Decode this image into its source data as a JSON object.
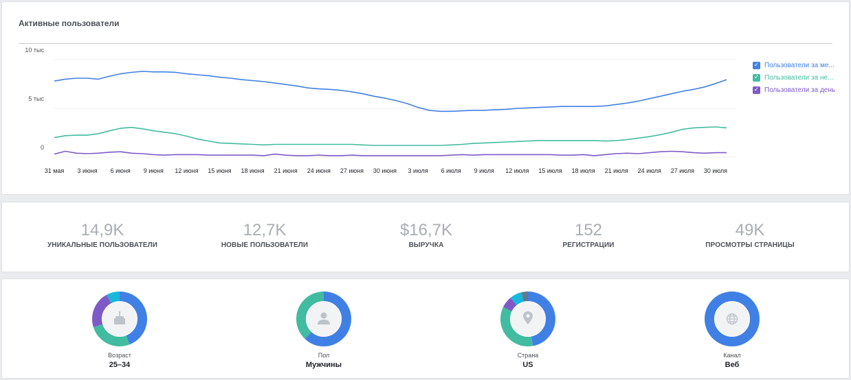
{
  "colors": {
    "monthly": "#4080e4",
    "weekly": "#42bca0",
    "daily": "#7e5ac8",
    "extra1": "#17b8dc",
    "extra2": "#5d7b8c",
    "grid": "#eceef1"
  },
  "chart_card": {
    "title": "Активные пользователи",
    "legend": [
      {
        "label": "Пользователи за ме...",
        "color": "#4080e4",
        "checked": true
      },
      {
        "label": "Пользователи за не...",
        "color": "#42bca0",
        "checked": true
      },
      {
        "label": "Пользователи за день",
        "color": "#7e5ac8",
        "checked": true
      }
    ]
  },
  "chart_data": {
    "type": "line",
    "title": "Активные пользователи",
    "xlabel": "",
    "ylabel": "",
    "ylim": [
      0,
      10000
    ],
    "yticks": [
      {
        "value": 0,
        "label": "0"
      },
      {
        "value": 5000,
        "label": "5 тыс"
      },
      {
        "value": 10000,
        "label": "10 тыс"
      }
    ],
    "x_tick_labels": [
      "31 мая",
      "3 июня",
      "6 июня",
      "9 июня",
      "12 июня",
      "15 июня",
      "18 июня",
      "21 июня",
      "24 июня",
      "27 июня",
      "30 июня",
      "3 июля",
      "6 июля",
      "9 июля",
      "12 июля",
      "15 июля",
      "18 июля",
      "21 июля",
      "24 июля",
      "27 июля",
      "30 июля"
    ],
    "x_tick_days": [
      0,
      3,
      6,
      9,
      12,
      15,
      18,
      21,
      24,
      27,
      30,
      33,
      36,
      39,
      42,
      45,
      48,
      51,
      54,
      57,
      60
    ],
    "x_range_days": [
      0,
      61
    ],
    "grid": true,
    "legend_position": "right",
    "series": [
      {
        "name": "Пользователи за месяц",
        "color": "#4080e4",
        "points": [
          [
            0,
            7800
          ],
          [
            1,
            8000
          ],
          [
            2,
            8100
          ],
          [
            3,
            8100
          ],
          [
            4,
            8000
          ],
          [
            5,
            8300
          ],
          [
            6,
            8550
          ],
          [
            7,
            8700
          ],
          [
            8,
            8800
          ],
          [
            9,
            8750
          ],
          [
            10,
            8750
          ],
          [
            11,
            8700
          ],
          [
            12,
            8550
          ],
          [
            13,
            8450
          ],
          [
            14,
            8350
          ],
          [
            15,
            8200
          ],
          [
            16,
            8100
          ],
          [
            17,
            7950
          ],
          [
            18,
            7850
          ],
          [
            19,
            7750
          ],
          [
            20,
            7600
          ],
          [
            21,
            7450
          ],
          [
            22,
            7300
          ],
          [
            23,
            7100
          ],
          [
            24,
            7000
          ],
          [
            25,
            6950
          ],
          [
            26,
            6850
          ],
          [
            27,
            6700
          ],
          [
            28,
            6500
          ],
          [
            29,
            6250
          ],
          [
            30,
            6050
          ],
          [
            31,
            5800
          ],
          [
            32,
            5500
          ],
          [
            33,
            5100
          ],
          [
            34,
            4800
          ],
          [
            35,
            4700
          ],
          [
            36,
            4700
          ],
          [
            37,
            4750
          ],
          [
            38,
            4800
          ],
          [
            39,
            4800
          ],
          [
            40,
            4850
          ],
          [
            41,
            4900
          ],
          [
            42,
            5000
          ],
          [
            43,
            5050
          ],
          [
            44,
            5100
          ],
          [
            45,
            5150
          ],
          [
            46,
            5200
          ],
          [
            47,
            5200
          ],
          [
            48,
            5200
          ],
          [
            49,
            5200
          ],
          [
            50,
            5250
          ],
          [
            51,
            5400
          ],
          [
            52,
            5550
          ],
          [
            53,
            5750
          ],
          [
            54,
            6000
          ],
          [
            55,
            6250
          ],
          [
            56,
            6500
          ],
          [
            57,
            6750
          ],
          [
            58,
            6950
          ],
          [
            59,
            7200
          ],
          [
            60,
            7550
          ],
          [
            61,
            7950
          ]
        ]
      },
      {
        "name": "Пользователи за неделю",
        "color": "#42bca0",
        "points": [
          [
            0,
            2000
          ],
          [
            1,
            2200
          ],
          [
            2,
            2250
          ],
          [
            3,
            2250
          ],
          [
            4,
            2400
          ],
          [
            5,
            2700
          ],
          [
            6,
            2950
          ],
          [
            7,
            3050
          ],
          [
            8,
            2900
          ],
          [
            9,
            2700
          ],
          [
            10,
            2550
          ],
          [
            11,
            2400
          ],
          [
            12,
            2150
          ],
          [
            13,
            1850
          ],
          [
            14,
            1650
          ],
          [
            15,
            1450
          ],
          [
            16,
            1400
          ],
          [
            17,
            1350
          ],
          [
            18,
            1300
          ],
          [
            19,
            1250
          ],
          [
            20,
            1300
          ],
          [
            21,
            1300
          ],
          [
            22,
            1300
          ],
          [
            23,
            1300
          ],
          [
            24,
            1300
          ],
          [
            25,
            1300
          ],
          [
            26,
            1300
          ],
          [
            27,
            1300
          ],
          [
            28,
            1250
          ],
          [
            29,
            1200
          ],
          [
            30,
            1200
          ],
          [
            31,
            1200
          ],
          [
            32,
            1200
          ],
          [
            33,
            1200
          ],
          [
            34,
            1200
          ],
          [
            35,
            1200
          ],
          [
            36,
            1250
          ],
          [
            37,
            1300
          ],
          [
            38,
            1400
          ],
          [
            39,
            1450
          ],
          [
            40,
            1500
          ],
          [
            41,
            1550
          ],
          [
            42,
            1600
          ],
          [
            43,
            1650
          ],
          [
            44,
            1700
          ],
          [
            45,
            1700
          ],
          [
            46,
            1700
          ],
          [
            47,
            1700
          ],
          [
            48,
            1700
          ],
          [
            49,
            1700
          ],
          [
            50,
            1650
          ],
          [
            51,
            1700
          ],
          [
            52,
            1800
          ],
          [
            53,
            1950
          ],
          [
            54,
            2100
          ],
          [
            55,
            2300
          ],
          [
            56,
            2550
          ],
          [
            57,
            2850
          ],
          [
            58,
            3000
          ],
          [
            59,
            3050
          ],
          [
            60,
            3100
          ],
          [
            61,
            3000
          ]
        ]
      },
      {
        "name": "Пользователи за день",
        "color": "#7e5ac8",
        "points": [
          [
            0,
            300
          ],
          [
            1,
            600
          ],
          [
            2,
            400
          ],
          [
            3,
            350
          ],
          [
            4,
            400
          ],
          [
            5,
            500
          ],
          [
            6,
            550
          ],
          [
            7,
            400
          ],
          [
            8,
            350
          ],
          [
            9,
            250
          ],
          [
            10,
            200
          ],
          [
            11,
            250
          ],
          [
            12,
            250
          ],
          [
            13,
            250
          ],
          [
            14,
            200
          ],
          [
            15,
            200
          ],
          [
            16,
            200
          ],
          [
            17,
            200
          ],
          [
            18,
            200
          ],
          [
            19,
            150
          ],
          [
            20,
            300
          ],
          [
            21,
            200
          ],
          [
            22,
            150
          ],
          [
            23,
            150
          ],
          [
            24,
            200
          ],
          [
            25,
            150
          ],
          [
            26,
            150
          ],
          [
            27,
            200
          ],
          [
            28,
            150
          ],
          [
            29,
            150
          ],
          [
            30,
            150
          ],
          [
            31,
            150
          ],
          [
            32,
            150
          ],
          [
            33,
            150
          ],
          [
            34,
            150
          ],
          [
            35,
            150
          ],
          [
            36,
            200
          ],
          [
            37,
            250
          ],
          [
            38,
            200
          ],
          [
            39,
            250
          ],
          [
            40,
            250
          ],
          [
            41,
            250
          ],
          [
            42,
            250
          ],
          [
            43,
            250
          ],
          [
            44,
            250
          ],
          [
            45,
            250
          ],
          [
            46,
            200
          ],
          [
            47,
            200
          ],
          [
            48,
            250
          ],
          [
            49,
            150
          ],
          [
            50,
            250
          ],
          [
            51,
            350
          ],
          [
            52,
            400
          ],
          [
            53,
            350
          ],
          [
            54,
            450
          ],
          [
            55,
            550
          ],
          [
            56,
            600
          ],
          [
            57,
            550
          ],
          [
            58,
            450
          ],
          [
            59,
            400
          ],
          [
            60,
            450
          ],
          [
            61,
            450
          ]
        ]
      }
    ]
  },
  "stats": [
    {
      "value": "14,9K",
      "label": "Уникальные пользователи"
    },
    {
      "value": "12,7K",
      "label": "Новые пользователи"
    },
    {
      "value": "$16,7K",
      "label": "Выручка"
    },
    {
      "value": "152",
      "label": "Регистрации"
    },
    {
      "value": "49K",
      "label": "Просмотры страницы"
    }
  ],
  "demographics": [
    {
      "label": "Возраст",
      "value": "25–34",
      "icon": "cake-icon",
      "segments": [
        {
          "fraction": 0.44,
          "color": "#4080e4"
        },
        {
          "fraction": 0.26,
          "color": "#42bca0"
        },
        {
          "fraction": 0.22,
          "color": "#7e5ac8"
        },
        {
          "fraction": 0.08,
          "color": "#17b8dc"
        }
      ]
    },
    {
      "label": "Пол",
      "value": "Мужчины",
      "icon": "person-icon",
      "segments": [
        {
          "fraction": 0.62,
          "color": "#4080e4"
        },
        {
          "fraction": 0.38,
          "color": "#42bca0"
        }
      ]
    },
    {
      "label": "Страна",
      "value": "US",
      "icon": "location-pin-icon",
      "segments": [
        {
          "fraction": 0.47,
          "color": "#4080e4"
        },
        {
          "fraction": 0.35,
          "color": "#42bca0"
        },
        {
          "fraction": 0.07,
          "color": "#7e5ac8"
        },
        {
          "fraction": 0.07,
          "color": "#17b8dc"
        },
        {
          "fraction": 0.04,
          "color": "#5d7b8c"
        }
      ]
    },
    {
      "label": "Канал",
      "value": "Веб",
      "icon": "globe-icon",
      "segments": [
        {
          "fraction": 1.0,
          "color": "#4080e4"
        }
      ]
    }
  ]
}
